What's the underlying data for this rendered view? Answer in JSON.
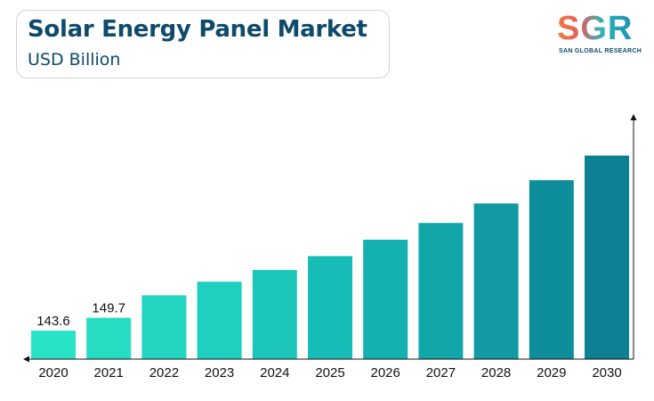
{
  "header": {
    "title": "Solar Energy Panel Market",
    "subtitle": "USD Billion"
  },
  "logo": {
    "mark": "SGR",
    "name": "SAN GLOBAL RESEARCH"
  },
  "chart_data": {
    "type": "bar",
    "title": "Solar Energy Panel Market",
    "subtitle": "USD Billion",
    "categories": [
      "2020",
      "2021",
      "2022",
      "2023",
      "2024",
      "2025",
      "2026",
      "2027",
      "2028",
      "2029",
      "2030"
    ],
    "values": [
      143.6,
      149.7,
      160.4,
      166.9,
      172.5,
      179.1,
      186.9,
      194.9,
      204.2,
      215.3,
      227.0
    ],
    "data_labels": [
      "143.6",
      "149.7",
      "",
      "",
      "",
      "",
      "",
      "",
      "",
      "",
      ""
    ],
    "xlabel": "",
    "ylabel": "",
    "ylim": [
      130,
      240
    ],
    "grid": false,
    "legend": "none",
    "colors": [
      "#29e3c6",
      "#26dcc3",
      "#22d6c2",
      "#1fcfbf",
      "#1cc6bb",
      "#18bcb6",
      "#15b1b0",
      "#13a6a9",
      "#119aa2",
      "#0e8e9b",
      "#0c8194"
    ]
  }
}
